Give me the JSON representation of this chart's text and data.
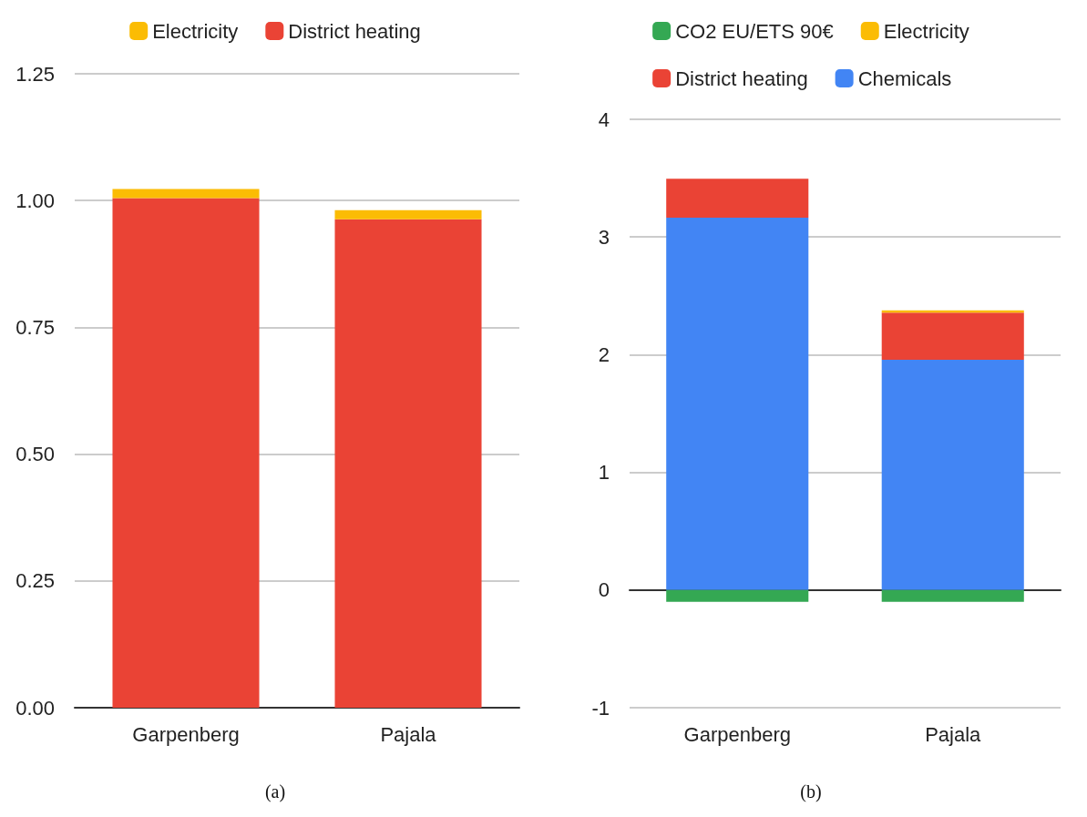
{
  "chart_data": [
    {
      "type": "bar",
      "stacked": true,
      "categories": [
        "Garpenberg",
        "Pajala"
      ],
      "series": [
        {
          "name": "District heating",
          "color": "#ea4335",
          "values": [
            1.005,
            0.963
          ]
        },
        {
          "name": "Electricity",
          "color": "#fbbc04",
          "values": [
            0.018,
            0.018
          ]
        }
      ],
      "ylim": [
        0,
        1.25
      ],
      "yticks": [
        {
          "value": 0,
          "label": "0.00"
        },
        {
          "value": 0.25,
          "label": "0.25"
        },
        {
          "value": 0.5,
          "label": "0.50"
        },
        {
          "value": 0.75,
          "label": "0.75"
        },
        {
          "value": 1,
          "label": "1.00"
        },
        {
          "value": 1.25,
          "label": "1.25"
        }
      ],
      "grid": "y",
      "legend": "top",
      "annotations": [
        "(a)"
      ]
    },
    {
      "type": "bar",
      "stacked": true,
      "categories": [
        "Garpenberg",
        "Pajala"
      ],
      "series": [
        {
          "name": "Chemicals",
          "color": "#4285f4",
          "values": [
            3.165,
            1.957
          ]
        },
        {
          "name": "District heating",
          "color": "#ea4335",
          "values": [
            0.33,
            0.4
          ]
        },
        {
          "name": "Electricity",
          "color": "#fbbc04",
          "values": [
            null,
            0.02
          ]
        },
        {
          "name": "CO2 EU/ETS 90€",
          "color": "#34a853",
          "values": [
            -0.1,
            -0.1
          ]
        }
      ],
      "ylim": [
        -1,
        4
      ],
      "yticks": [
        -1,
        0,
        1,
        2,
        3,
        4
      ],
      "grid": "y",
      "legend": "top",
      "annotations": [
        "(b)"
      ]
    }
  ]
}
